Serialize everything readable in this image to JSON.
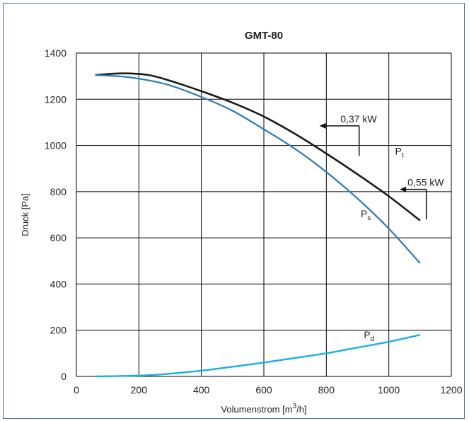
{
  "chart_data": {
    "type": "line",
    "title": "GMT-80",
    "xlabel": "Volumenstrom [m",
    "xlabel_sup": "3",
    "xlabel_end": "/h]",
    "ylabel": "Druck [Pa]",
    "xlim": [
      0,
      1200
    ],
    "ylim": [
      0,
      1400
    ],
    "x_ticks": [
      0,
      200,
      400,
      600,
      800,
      1000,
      1200
    ],
    "y_ticks": [
      0,
      200,
      400,
      600,
      800,
      1000,
      1200,
      1400
    ],
    "grid": true,
    "colors": {
      "pt": "#1a1a1a",
      "ps": "#2a7ab8",
      "pd": "#17b0e2",
      "grid": "#000000",
      "frame": "#4a6fa5"
    },
    "series": [
      {
        "name": "Pt",
        "sub": "t",
        "points": [
          [
            60,
            1305
          ],
          [
            150,
            1312
          ],
          [
            230,
            1305
          ],
          [
            300,
            1280
          ],
          [
            400,
            1235
          ],
          [
            500,
            1185
          ],
          [
            600,
            1125
          ],
          [
            700,
            1050
          ],
          [
            800,
            965
          ],
          [
            900,
            875
          ],
          [
            1000,
            780
          ],
          [
            1100,
            675
          ]
        ]
      },
      {
        "name": "Ps",
        "sub": "s",
        "points": [
          [
            60,
            1305
          ],
          [
            150,
            1298
          ],
          [
            230,
            1282
          ],
          [
            300,
            1260
          ],
          [
            400,
            1210
          ],
          [
            500,
            1150
          ],
          [
            600,
            1070
          ],
          [
            700,
            985
          ],
          [
            800,
            885
          ],
          [
            900,
            770
          ],
          [
            1000,
            640
          ],
          [
            1100,
            490
          ]
        ]
      },
      {
        "name": "Pd",
        "sub": "d",
        "points": [
          [
            60,
            0
          ],
          [
            150,
            2
          ],
          [
            230,
            5
          ],
          [
            300,
            12
          ],
          [
            400,
            25
          ],
          [
            500,
            42
          ],
          [
            600,
            60
          ],
          [
            700,
            80
          ],
          [
            800,
            100
          ],
          [
            900,
            125
          ],
          [
            1000,
            150
          ],
          [
            1100,
            180
          ]
        ]
      }
    ],
    "annotations": [
      {
        "text": "0,37 kW",
        "at": [
          840,
          1000
        ]
      },
      {
        "text": "0,55 kW",
        "at": [
          1100,
          810
        ]
      }
    ]
  }
}
